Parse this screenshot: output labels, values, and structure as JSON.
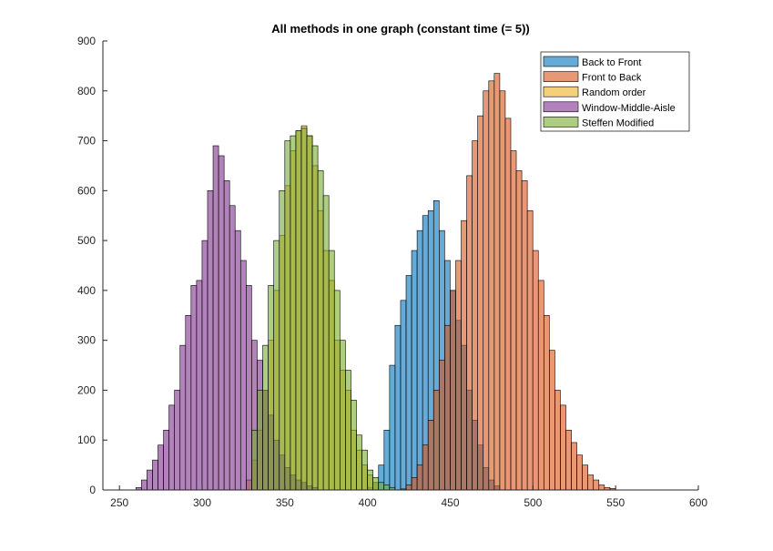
{
  "chart_data": {
    "type": "histogram",
    "title": "All methods in one graph (constant time (= 5))",
    "xlabel": "",
    "ylabel": "",
    "xlim": [
      240,
      600
    ],
    "ylim": [
      0,
      900
    ],
    "xticks": [
      250,
      300,
      350,
      400,
      450,
      500,
      550,
      600
    ],
    "yticks": [
      0,
      100,
      200,
      300,
      400,
      500,
      600,
      700,
      800,
      900
    ],
    "grid": false,
    "legend_position": "top-right",
    "bar_opacity": 0.6,
    "series": [
      {
        "name": "Back to Front",
        "color": "#0072bd",
        "bin_start": 400,
        "bin_width": 3.33,
        "values": [
          5,
          15,
          50,
          120,
          250,
          330,
          380,
          430,
          480,
          520,
          550,
          560,
          580,
          520,
          460,
          400,
          340,
          290,
          200,
          140,
          90,
          45,
          20,
          8
        ]
      },
      {
        "name": "Front to Back",
        "color": "#d95319",
        "bin_start": 420,
        "bin_width": 3.33,
        "values": [
          2,
          10,
          25,
          50,
          90,
          140,
          200,
          260,
          330,
          400,
          460,
          540,
          630,
          700,
          750,
          800,
          820,
          835,
          800,
          745,
          680,
          640,
          620,
          560,
          480,
          420,
          350,
          280,
          200,
          170,
          120,
          95,
          70,
          50,
          30,
          20,
          10,
          5,
          3
        ]
      },
      {
        "name": "Random order",
        "color": "#edb120",
        "bin_start": 326.7,
        "bin_width": 3.33,
        "values": [
          20,
          60,
          120,
          200,
          300,
          400,
          510,
          610,
          680,
          720,
          730,
          710,
          650,
          560,
          480,
          420,
          300,
          240,
          200,
          120,
          80,
          50,
          30,
          15
        ]
      },
      {
        "name": "Window-Middle-Aisle",
        "color": "#7e2f8e",
        "bin_start": 260,
        "bin_width": 3.33,
        "values": [
          5,
          20,
          40,
          60,
          90,
          120,
          170,
          200,
          290,
          350,
          410,
          420,
          500,
          600,
          690,
          670,
          620,
          570,
          520,
          460,
          410,
          300,
          260,
          200,
          150,
          100,
          70,
          45,
          30,
          20,
          15,
          8,
          5
        ]
      },
      {
        "name": "Steffen Modified",
        "color": "#77ac30",
        "bin_start": 330,
        "bin_width": 3.33,
        "values": [
          120,
          200,
          290,
          410,
          500,
          600,
          700,
          710,
          720,
          725,
          710,
          690,
          640,
          590,
          480,
          400,
          300,
          240,
          180,
          110,
          80,
          40,
          25,
          15,
          10,
          5
        ]
      }
    ]
  }
}
